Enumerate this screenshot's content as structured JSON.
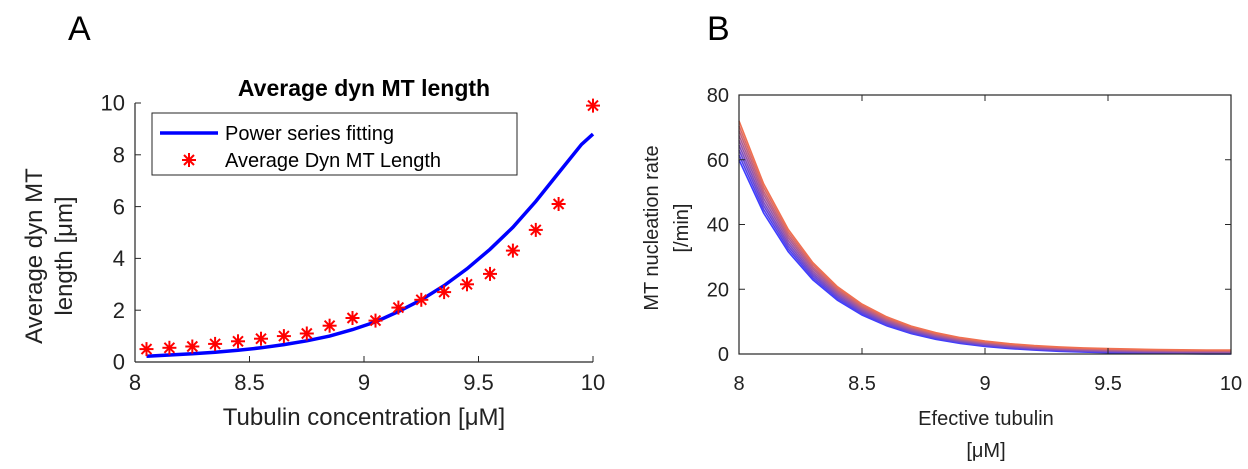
{
  "panels": {
    "A": {
      "label": "A"
    },
    "B": {
      "label": "B"
    }
  },
  "colors": {
    "fit_line": "#0000ff",
    "markers": "#ff0000",
    "curve_low": "#3d3dff",
    "curve_high": "#f07050",
    "axis": "#262626"
  },
  "chart_data": [
    {
      "type": "line",
      "panel": "A",
      "title": "Average dyn MT length",
      "xlabel": "Tubulin concentration [μM]",
      "ylabel_line1": "Average dyn MT",
      "ylabel_line2": "length [μm]",
      "xlim": [
        8,
        10
      ],
      "ylim": [
        0,
        10
      ],
      "xticks": [
        8,
        8.5,
        9,
        9.5,
        10
      ],
      "xtick_labels": [
        "8",
        "8.5",
        "9",
        "9.5",
        "10"
      ],
      "yticks": [
        0,
        2,
        4,
        6,
        8,
        10
      ],
      "ytick_labels": [
        "0",
        "2",
        "4",
        "6",
        "8",
        "10"
      ],
      "grid": false,
      "legend_position": "top-left",
      "series": [
        {
          "name": "Power series fitting",
          "kind": "line",
          "x": [
            8.05,
            8.15,
            8.25,
            8.35,
            8.45,
            8.55,
            8.65,
            8.75,
            8.85,
            8.95,
            9.05,
            9.15,
            9.25,
            9.35,
            9.45,
            9.55,
            9.65,
            9.75,
            9.85,
            9.95,
            10.0
          ],
          "y": [
            0.22,
            0.27,
            0.32,
            0.38,
            0.45,
            0.55,
            0.67,
            0.82,
            1.0,
            1.25,
            1.55,
            1.95,
            2.4,
            2.95,
            3.6,
            4.35,
            5.2,
            6.2,
            7.3,
            8.4,
            8.8
          ]
        },
        {
          "name": "Average Dyn MT Length",
          "kind": "scatter",
          "x": [
            8.05,
            8.15,
            8.25,
            8.35,
            8.45,
            8.55,
            8.65,
            8.75,
            8.85,
            8.95,
            9.05,
            9.15,
            9.25,
            9.35,
            9.45,
            9.55,
            9.65,
            9.75,
            9.85,
            10.0
          ],
          "y": [
            0.5,
            0.55,
            0.6,
            0.7,
            0.8,
            0.9,
            1.0,
            1.1,
            1.4,
            1.7,
            1.6,
            2.1,
            2.4,
            2.7,
            3.0,
            3.4,
            4.3,
            5.1,
            6.1,
            9.9
          ]
        }
      ]
    },
    {
      "type": "line",
      "panel": "B",
      "title": "",
      "xlabel_line1": "Efective tubulin",
      "xlabel_line2": "[μM]",
      "ylabel_line1": "MT nucleation rate",
      "ylabel_line2": "[/min]",
      "xlim": [
        8,
        10
      ],
      "ylim": [
        0,
        80
      ],
      "xticks": [
        8,
        8.5,
        9,
        9.5,
        10
      ],
      "xtick_labels": [
        "8",
        "8.5",
        "9",
        "9.5",
        "10"
      ],
      "yticks": [
        0,
        20,
        40,
        60,
        80
      ],
      "ytick_labels": [
        "0",
        "20",
        "40",
        "60",
        "80"
      ],
      "grid": false,
      "family": {
        "x": [
          8.0,
          8.1,
          8.2,
          8.3,
          8.4,
          8.5,
          8.6,
          8.7,
          8.8,
          8.9,
          9.0,
          9.1,
          9.2,
          9.3,
          9.4,
          9.5,
          9.6,
          9.7,
          9.8,
          9.9,
          10.0
        ],
        "start_values": [
          60,
          61.5,
          63,
          64.5,
          66,
          67.5,
          69,
          70.5,
          72
        ],
        "end_values": [
          0.0,
          0.15,
          0.3,
          0.45,
          0.6,
          0.75,
          0.9,
          1.05,
          1.2
        ],
        "decay_rate_per_unit": 3.2
      }
    }
  ]
}
